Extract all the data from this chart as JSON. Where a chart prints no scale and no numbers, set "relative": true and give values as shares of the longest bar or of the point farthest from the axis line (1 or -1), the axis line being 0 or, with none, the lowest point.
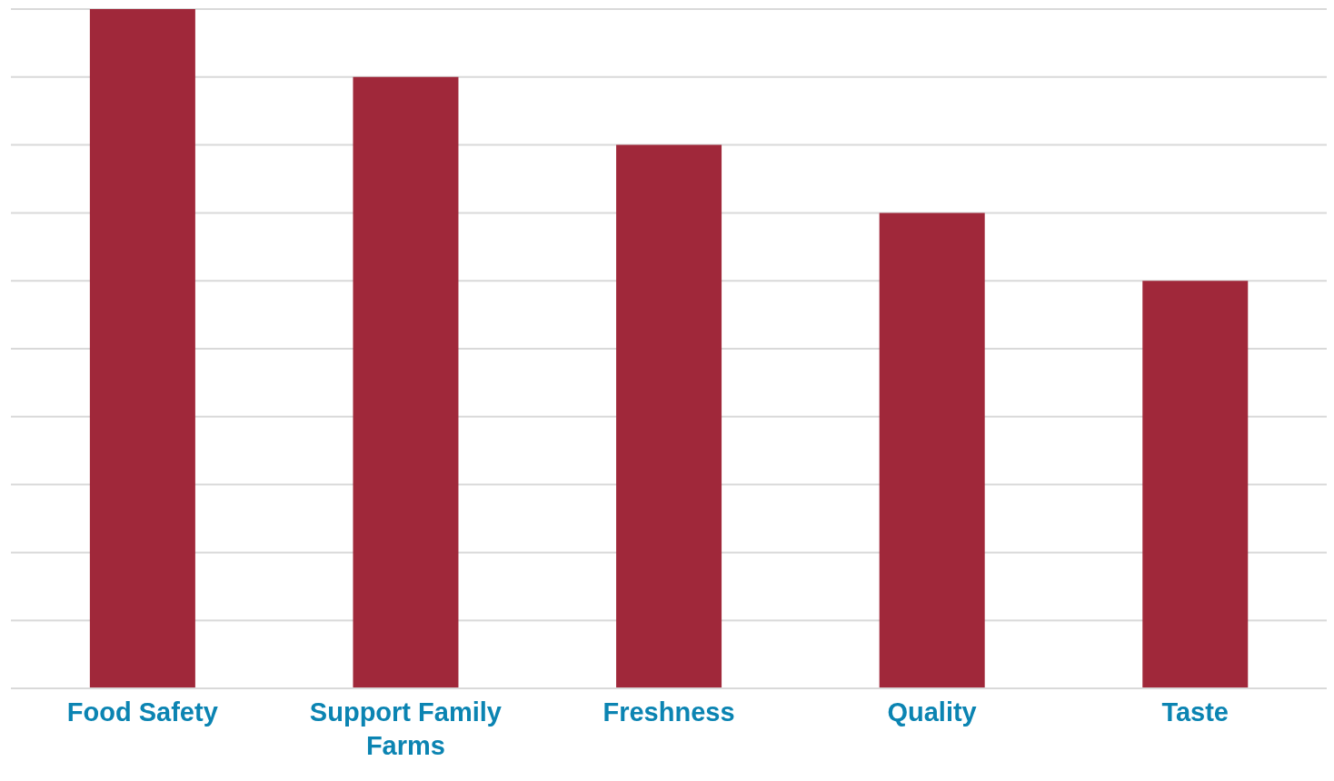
{
  "chart_data": {
    "type": "bar",
    "relative": true,
    "categories": [
      "Food Safety",
      "Support Family Farms",
      "Freshness",
      "Quality",
      "Taste"
    ],
    "values": [
      1,
      0.9,
      0.8,
      0.7,
      0.6
    ],
    "color": "#a0283a",
    "grid": "y"
  }
}
